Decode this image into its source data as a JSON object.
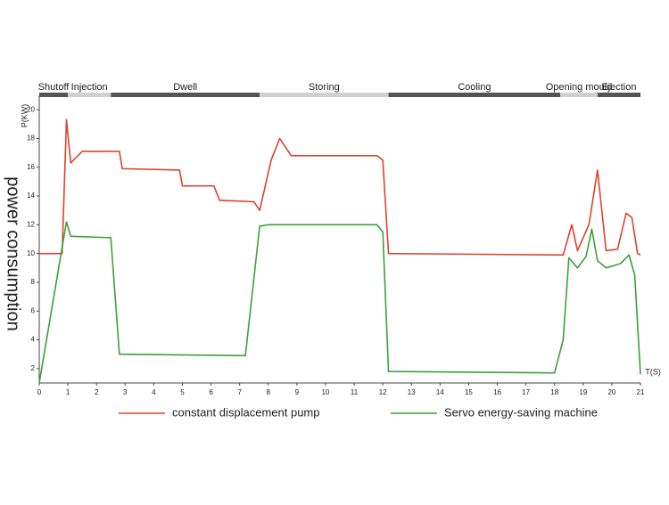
{
  "chart_data": {
    "type": "line",
    "y_label": "P(KW)",
    "x_label": "T(S)",
    "side_label": "power consumption",
    "xlim": [
      0,
      21
    ],
    "xticks": [
      0,
      1,
      2,
      3,
      4,
      5,
      6,
      7,
      8,
      9,
      10,
      11,
      12,
      13,
      14,
      15,
      16,
      17,
      18,
      19,
      20,
      21
    ],
    "ylim": [
      1,
      21
    ],
    "yticks": [
      2,
      4,
      6,
      8,
      10,
      12,
      14,
      16,
      18,
      20
    ],
    "phases": [
      {
        "label": "Shutoff",
        "start": 0,
        "end": 1,
        "color": "#555555"
      },
      {
        "label": "Injection",
        "start": 1,
        "end": 2.5,
        "color": "#d0d0d0"
      },
      {
        "label": "Dwell",
        "start": 2.5,
        "end": 7.7,
        "color": "#555555"
      },
      {
        "label": "Storing",
        "start": 7.7,
        "end": 12.2,
        "color": "#d0d0d0"
      },
      {
        "label": "Cooling",
        "start": 12.2,
        "end": 18.2,
        "color": "#555555"
      },
      {
        "label": "Opening mould",
        "start": 18.2,
        "end": 19.5,
        "color": "#d0d0d0"
      },
      {
        "label": "Ejection",
        "start": 19.5,
        "end": 21,
        "color": "#555555"
      }
    ],
    "series": [
      {
        "name": "constant displacement pump",
        "color": "#e0412e",
        "x": [
          0,
          0.8,
          0.95,
          1.1,
          1.5,
          2.8,
          2.9,
          4.9,
          5.0,
          6.1,
          6.3,
          7.5,
          7.7,
          8.1,
          8.4,
          8.8,
          11.8,
          12.0,
          12.2,
          18.3,
          18.6,
          18.8,
          19.2,
          19.5,
          19.8,
          20.2,
          20.5,
          20.7,
          20.9,
          21
        ],
        "values": [
          10,
          10,
          19.3,
          16.3,
          17.1,
          17.1,
          15.9,
          15.8,
          14.7,
          14.7,
          13.7,
          13.6,
          13.0,
          16.5,
          18.0,
          16.8,
          16.8,
          16.5,
          10.0,
          9.9,
          12.0,
          10.2,
          12.0,
          15.8,
          10.2,
          10.3,
          12.8,
          12.5,
          10.0,
          9.9
        ]
      },
      {
        "name": "Servo energy-saving machine",
        "color": "#3aa13a",
        "x": [
          0,
          0.95,
          1.1,
          2.5,
          2.8,
          7.2,
          7.7,
          8.0,
          11.8,
          12.0,
          12.2,
          18.0,
          18.3,
          18.5,
          18.8,
          19.1,
          19.3,
          19.5,
          19.8,
          20.3,
          20.6,
          20.8,
          21
        ],
        "values": [
          1,
          12.2,
          11.2,
          11.1,
          3.0,
          2.9,
          11.9,
          12.0,
          12.0,
          11.5,
          1.8,
          1.7,
          4,
          9.7,
          9.0,
          9.8,
          11.7,
          9.5,
          9.0,
          9.3,
          9.9,
          8.5,
          1.6
        ]
      }
    ]
  }
}
